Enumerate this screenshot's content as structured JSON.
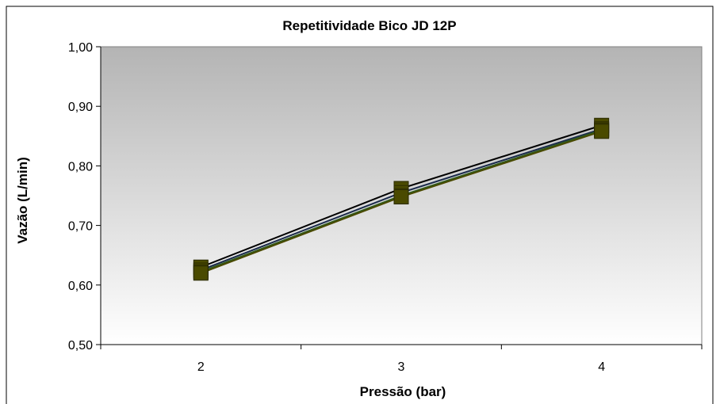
{
  "chart_data": {
    "type": "line",
    "title": "Repetitividade Bico JD 12P",
    "xlabel": "Pressão (bar)",
    "ylabel": "Vazão (L/min)",
    "categories": [
      "2",
      "3",
      "4"
    ],
    "ylim": [
      0.5,
      1.0
    ],
    "yticks": [
      "0,50",
      "0,60",
      "0,70",
      "0,80",
      "0,90",
      "1,00"
    ],
    "grid": false,
    "legend": "none",
    "plot_background": "gradient gray-to-white",
    "series": [
      {
        "values": [
          0.63,
          0.762,
          0.868
        ],
        "color": "#000000",
        "marker": "square"
      },
      {
        "values": [
          0.625,
          0.755,
          0.862
        ],
        "color": "#1a2a4a",
        "marker": "square"
      },
      {
        "values": [
          0.622,
          0.75,
          0.86
        ],
        "color": "#2e5a1c",
        "marker": "square"
      },
      {
        "values": [
          0.62,
          0.748,
          0.858
        ],
        "color": "#4a4a00",
        "marker": "square"
      }
    ],
    "marker_fill": "#4a4a00"
  }
}
